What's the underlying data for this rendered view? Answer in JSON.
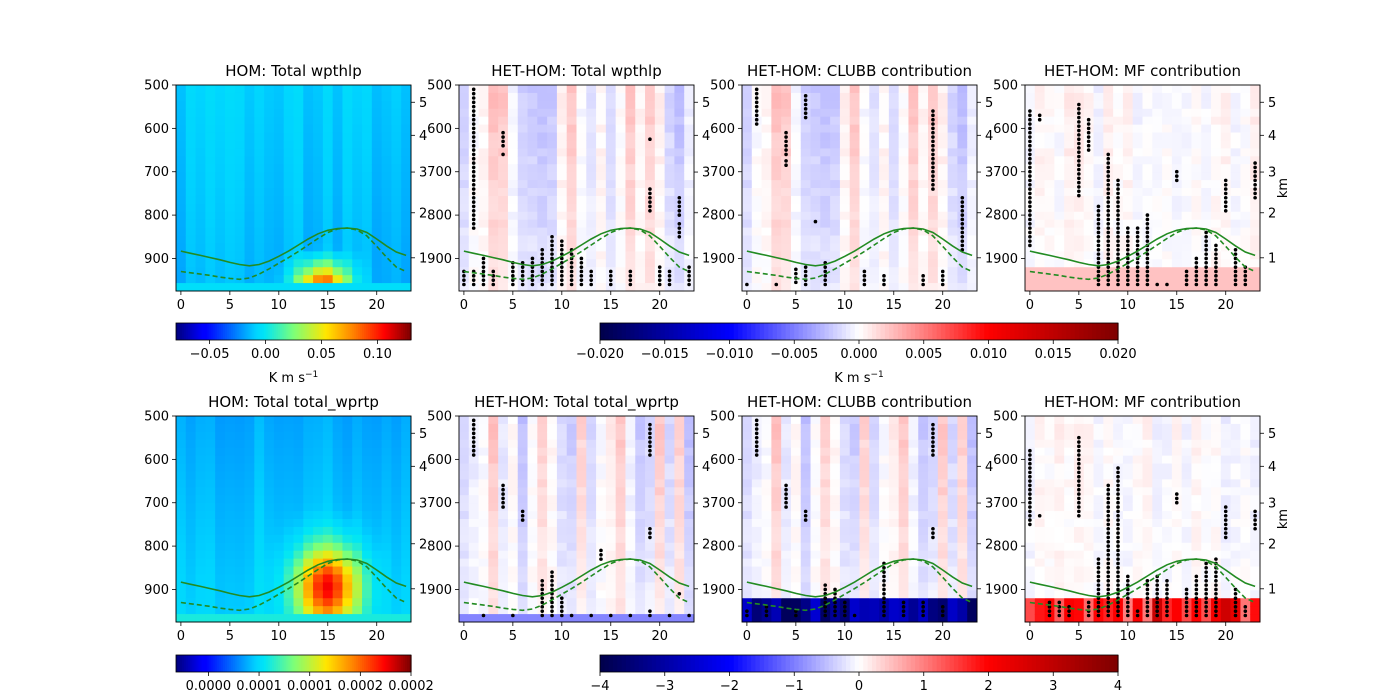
{
  "chart_data": {
    "type": "heatmap",
    "x_ticks": [
      0,
      5,
      10,
      15,
      20
    ],
    "xlim": [
      -0.5,
      23.5
    ],
    "y_pressure_ticks": [
      500,
      600,
      700,
      800,
      900
    ],
    "y_pressure_range": [
      500,
      975
    ],
    "y_height_ticks": [
      1,
      2,
      3,
      4,
      5
    ],
    "y_height_label": "km",
    "line_color": "#228b22",
    "line_solid_pressure": [
      883,
      888,
      893,
      898,
      903,
      909,
      914,
      917,
      914,
      906,
      895,
      883,
      869,
      855,
      843,
      835,
      831,
      830,
      832,
      840,
      855,
      871,
      885,
      893
    ],
    "line_dashed_pressure": [
      930,
      933,
      936,
      939,
      943,
      946,
      948,
      945,
      936,
      924,
      911,
      898,
      884,
      869,
      854,
      840,
      832,
      830,
      834,
      848,
      872,
      897,
      920,
      930
    ],
    "rows": [
      {
        "colorbar": {
          "label": "K m s$^{-1}$",
          "label_text": "K m s−1",
          "ticks": [
            "−0.05",
            "0.00",
            "0.05",
            "0.10"
          ],
          "values": [
            -0.05,
            0.0,
            0.05,
            0.1
          ],
          "vmin": -0.08,
          "vmax": 0.13,
          "colormap": "jet"
        },
        "diff_colorbar": {
          "label_text": "K m s−1",
          "ticks": [
            "−0.020",
            "−0.015",
            "−0.010",
            "−0.005",
            "0.000",
            "0.005",
            "0.010",
            "0.015",
            "0.020"
          ],
          "values": [
            -0.02,
            -0.015,
            -0.01,
            -0.005,
            0,
            0.005,
            0.01,
            0.015,
            0.02
          ],
          "vmin": -0.02,
          "vmax": 0.02,
          "colormap": "seismic"
        },
        "panels": [
          {
            "title": "HOM: Total wpthlp",
            "field": "hom_heat",
            "stipple": []
          },
          {
            "title": "HET-HOM: Total wpthlp",
            "field": "diff_total",
            "stipple": [
              [
                1,
                510,
                830
              ],
              [
                4,
                610,
                640
              ],
              [
                4,
                660,
                660
              ],
              [
                19,
                625,
                625
              ],
              [
                19,
                740,
                790
              ],
              [
                22,
                760,
                800
              ],
              [
                22,
                820,
                850
              ],
              [
                9,
                850,
                960
              ],
              [
                10,
                860,
                960
              ],
              [
                8,
                880,
                960
              ],
              [
                7,
                900,
                960
              ],
              [
                6,
                910,
                960
              ],
              [
                11,
                880,
                960
              ],
              [
                12,
                900,
                960
              ],
              [
                13,
                930,
                960
              ],
              [
                15,
                930,
                960
              ],
              [
                17,
                930,
                960
              ],
              [
                20,
                920,
                960
              ],
              [
                21,
                930,
                960
              ],
              [
                23,
                920,
                960
              ],
              [
                0,
                930,
                960
              ],
              [
                1,
                930,
                960
              ],
              [
                2,
                900,
                960
              ],
              [
                3,
                930,
                960
              ],
              [
                5,
                910,
                960
              ]
            ]
          },
          {
            "title": "HET-HOM: CLUBB contribution",
            "field": "diff_clubb",
            "stipple": [
              [
                1,
                510,
                590
              ],
              [
                4,
                610,
                660
              ],
              [
                4,
                675,
                690
              ],
              [
                6,
                525,
                580
              ],
              [
                7,
                815,
                815
              ],
              [
                19,
                560,
                740
              ],
              [
                22,
                760,
                880
              ],
              [
                5,
                925,
                960
              ],
              [
                6,
                920,
                960
              ],
              [
                8,
                910,
                960
              ],
              [
                12,
                930,
                960
              ],
              [
                14,
                940,
                960
              ],
              [
                18,
                940,
                960
              ],
              [
                20,
                930,
                960
              ],
              [
                0,
                960,
                960
              ],
              [
                3,
                960,
                960
              ]
            ]
          },
          {
            "title": "HET-HOM: MF contribution",
            "field": "diff_mf",
            "stipple": [
              [
                0,
                560,
                870
              ],
              [
                1,
                570,
                580
              ],
              [
                5,
                545,
                760
              ],
              [
                6,
                580,
                650
              ],
              [
                8,
                660,
                960
              ],
              [
                9,
                720,
                960
              ],
              [
                7,
                780,
                960
              ],
              [
                10,
                830,
                960
              ],
              [
                11,
                830,
                960
              ],
              [
                12,
                800,
                960
              ],
              [
                13,
                960,
                960
              ],
              [
                15,
                700,
                720
              ],
              [
                18,
                840,
                960
              ],
              [
                19,
                870,
                960
              ],
              [
                20,
                720,
                790
              ],
              [
                21,
                880,
                960
              ],
              [
                22,
                920,
                960
              ],
              [
                23,
                680,
                760
              ],
              [
                14,
                960,
                960
              ],
              [
                16,
                930,
                960
              ],
              [
                17,
                900,
                960
              ]
            ]
          }
        ]
      },
      {
        "colorbar": {
          "label_text": "",
          "ticks": [
            "0.0000",
            "0.0001",
            "0.0001",
            "0.0002",
            "0.0002"
          ],
          "values": [
            0,
            6.25e-05,
            0.000125,
            0.0001875,
            0.00025
          ],
          "vmin": -4e-05,
          "vmax": 0.00025,
          "colormap": "jet"
        },
        "diff_colorbar": {
          "label_text": "",
          "ticks": [
            "−4",
            "−3",
            "−2",
            "−1",
            "0",
            "1",
            "2",
            "3",
            "4"
          ],
          "values": [
            -4,
            -3,
            -2,
            -1,
            0,
            1,
            2,
            3,
            4
          ],
          "vmin": -4,
          "vmax": 4,
          "colormap": "seismic"
        },
        "panels": [
          {
            "title": "HOM: Total total_wprtp",
            "field": "hom_q",
            "stipple": []
          },
          {
            "title": "HET-HOM: Total total_wprtp",
            "field": "diff_total2",
            "stipple": [
              [
                1,
                510,
                590
              ],
              [
                4,
                660,
                710
              ],
              [
                6,
                720,
                740
              ],
              [
                19,
                520,
                590
              ],
              [
                19,
                760,
                780
              ],
              [
                22,
                910,
                910
              ],
              [
                14,
                810,
                830
              ],
              [
                8,
                880,
                960
              ],
              [
                9,
                860,
                960
              ],
              [
                10,
                920,
                960
              ],
              [
                11,
                960,
                960
              ],
              [
                13,
                960,
                960
              ],
              [
                15,
                960,
                960
              ],
              [
                17,
                960,
                960
              ],
              [
                19,
                950,
                960
              ],
              [
                21,
                960,
                960
              ],
              [
                23,
                960,
                960
              ],
              [
                2,
                960,
                960
              ],
              [
                5,
                960,
                960
              ]
            ]
          },
          {
            "title": "HET-HOM: CLUBB contribution",
            "field": "diff_clubb2",
            "stipple": [
              [
                1,
                510,
                590
              ],
              [
                4,
                660,
                710
              ],
              [
                6,
                720,
                740
              ],
              [
                19,
                520,
                590
              ],
              [
                19,
                760,
                780
              ],
              [
                14,
                840,
                960
              ],
              [
                8,
                890,
                960
              ],
              [
                9,
                900,
                960
              ],
              [
                10,
                930,
                960
              ],
              [
                16,
                930,
                960
              ],
              [
                18,
                930,
                960
              ],
              [
                20,
                940,
                960
              ],
              [
                0,
                950,
                960
              ],
              [
                2,
                940,
                960
              ],
              [
                5,
                950,
                960
              ],
              [
                11,
                960,
                960
              ]
            ]
          },
          {
            "title": "HET-HOM: MF contribution",
            "field": "diff_mf2",
            "stipple": [
              [
                0,
                580,
                750
              ],
              [
                1,
                730,
                730
              ],
              [
                5,
                550,
                730
              ],
              [
                8,
                660,
                960
              ],
              [
                9,
                620,
                960
              ],
              [
                7,
                830,
                960
              ],
              [
                10,
                870,
                960
              ],
              [
                12,
                880,
                960
              ],
              [
                13,
                870,
                960
              ],
              [
                14,
                880,
                960
              ],
              [
                15,
                680,
                700
              ],
              [
                16,
                900,
                960
              ],
              [
                17,
                870,
                960
              ],
              [
                18,
                840,
                960
              ],
              [
                19,
                830,
                960
              ],
              [
                20,
                710,
                780
              ],
              [
                21,
                900,
                960
              ],
              [
                23,
                720,
                760
              ],
              [
                2,
                930,
                960
              ],
              [
                3,
                930,
                960
              ],
              [
                4,
                940,
                960
              ],
              [
                6,
                930,
                960
              ],
              [
                11,
                950,
                960
              ],
              [
                22,
                940,
                960
              ]
            ]
          }
        ]
      }
    ]
  }
}
